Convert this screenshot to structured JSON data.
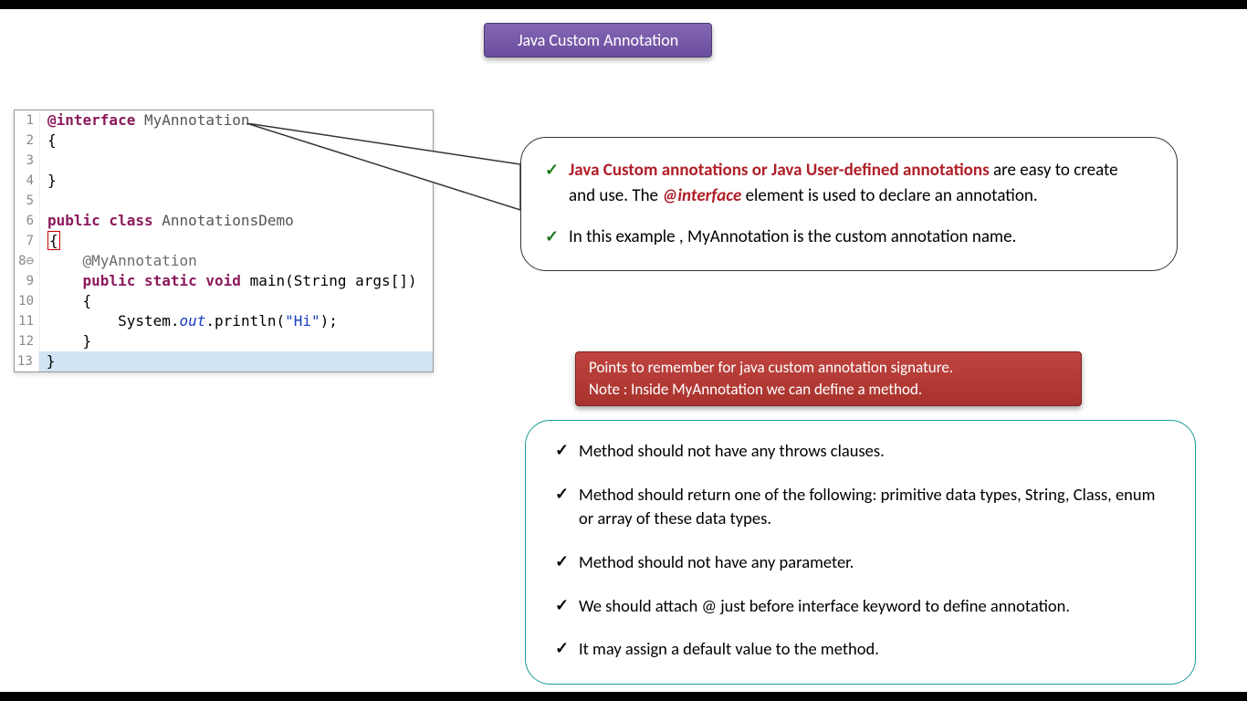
{
  "title": "Java Custom Annotation",
  "colors": {
    "title_bg": "#6b4e9e",
    "warn_bg": "#a8322d",
    "points_border": "#1a9b9b",
    "red_accent": "#b01e27",
    "check_green": "#1a7a1a",
    "keyword": "#8b1a5c"
  },
  "code": {
    "lines": [
      {
        "n": "1",
        "tokens": [
          {
            "t": "@interface ",
            "c": "kw"
          },
          {
            "t": "MyAnnotation",
            "c": "cls"
          }
        ]
      },
      {
        "n": "2",
        "tokens": [
          {
            "t": "{",
            "c": ""
          }
        ]
      },
      {
        "n": "3",
        "tokens": [
          {
            "t": "",
            "c": ""
          }
        ]
      },
      {
        "n": "4",
        "tokens": [
          {
            "t": "}",
            "c": ""
          }
        ]
      },
      {
        "n": "5",
        "tokens": [
          {
            "t": "",
            "c": ""
          }
        ]
      },
      {
        "n": "6",
        "tokens": [
          {
            "t": "public class ",
            "c": "kw"
          },
          {
            "t": "AnnotationsDemo",
            "c": "cls"
          }
        ]
      },
      {
        "n": "7",
        "tokens": [
          {
            "t": "{",
            "c": "cursor"
          }
        ]
      },
      {
        "n": "8⊖",
        "tokens": [
          {
            "t": "    ",
            "c": ""
          },
          {
            "t": "@MyAnnotation",
            "c": "ann"
          }
        ]
      },
      {
        "n": "9",
        "tokens": [
          {
            "t": "    ",
            "c": ""
          },
          {
            "t": "public static void ",
            "c": "kw"
          },
          {
            "t": "main(String args[])",
            "c": ""
          }
        ]
      },
      {
        "n": "10",
        "tokens": [
          {
            "t": "    {",
            "c": ""
          }
        ]
      },
      {
        "n": "11",
        "tokens": [
          {
            "t": "        System.",
            "c": ""
          },
          {
            "t": "out",
            "c": "field"
          },
          {
            "t": ".println(",
            "c": ""
          },
          {
            "t": "\"Hi\"",
            "c": "str"
          },
          {
            "t": ");",
            "c": ""
          }
        ]
      },
      {
        "n": "12",
        "tokens": [
          {
            "t": "    }",
            "c": ""
          }
        ]
      },
      {
        "n": "13",
        "tokens": [
          {
            "t": "}",
            "c": ""
          }
        ],
        "hl": true
      }
    ]
  },
  "callout": {
    "point1_red": "Java Custom annotations or Java User-defined annotations",
    "point1_rest_a": " are easy to create and use. The ",
    "point1_interface": "@interface",
    "point1_rest_b": " element is used to declare an annotation.",
    "point2": "In this example , MyAnnotation is the custom annotation name."
  },
  "warn": {
    "line1": "Points to remember for java custom annotation signature.",
    "line2": "Note : Inside MyAnnotation we can define a method."
  },
  "points": {
    "p1": "Method should not have any throws clauses.",
    "p2": "Method should return one of the following: primitive data types, String, Class, enum or array of these data types.",
    "p3": "Method should not have any parameter.",
    "p4": "We should attach @ just before interface keyword to define annotation.",
    "p5": "It may assign a default value to the method."
  }
}
